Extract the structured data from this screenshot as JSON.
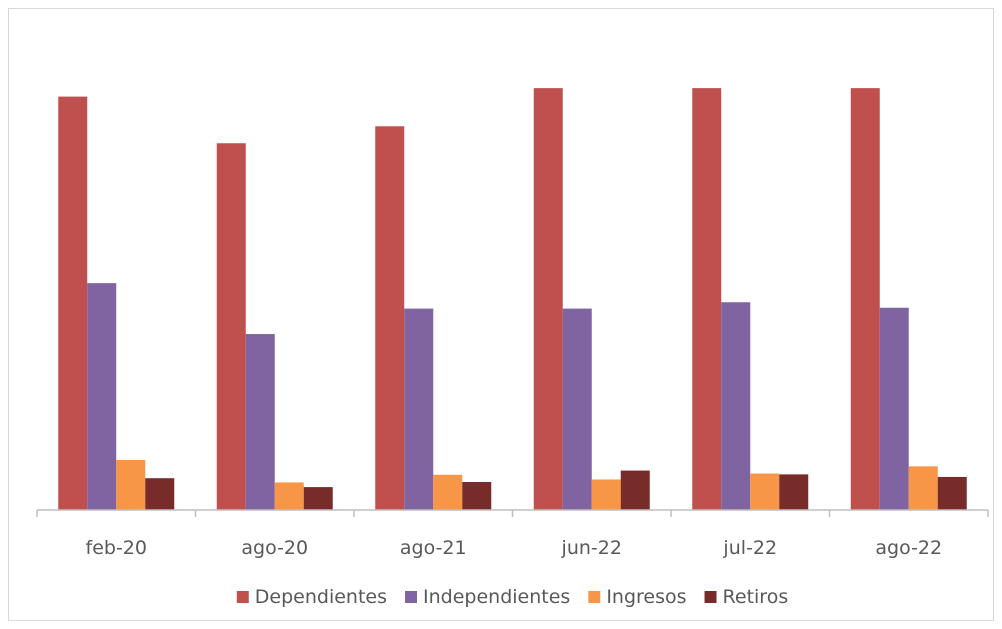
{
  "chart_data": {
    "type": "bar",
    "title": "",
    "xlabel": "",
    "ylabel": "",
    "ylim": [
      0,
      100
    ],
    "grid": false,
    "legend": "bottom",
    "categories": [
      "feb-20",
      "ago-20",
      "ago-21",
      "jun-22",
      "jul-22",
      "ago-22"
    ],
    "series": [
      {
        "name": "Dependientes",
        "color": "#c0504d",
        "values": [
          97.5,
          86.5,
          90.5,
          99.5,
          99.5,
          99.5
        ]
      },
      {
        "name": "Independientes",
        "color": "#8064a2",
        "values": [
          53.5,
          41.5,
          47.5,
          47.5,
          49,
          47.7
        ]
      },
      {
        "name": "Ingresos",
        "color": "#f79646",
        "values": [
          11.8,
          6.5,
          8.3,
          7.2,
          8.6,
          10.3
        ]
      },
      {
        "name": "Retiros",
        "color": "#772c2a",
        "values": [
          7.5,
          5.4,
          6.6,
          9.3,
          8.4,
          7.8
        ]
      }
    ]
  }
}
